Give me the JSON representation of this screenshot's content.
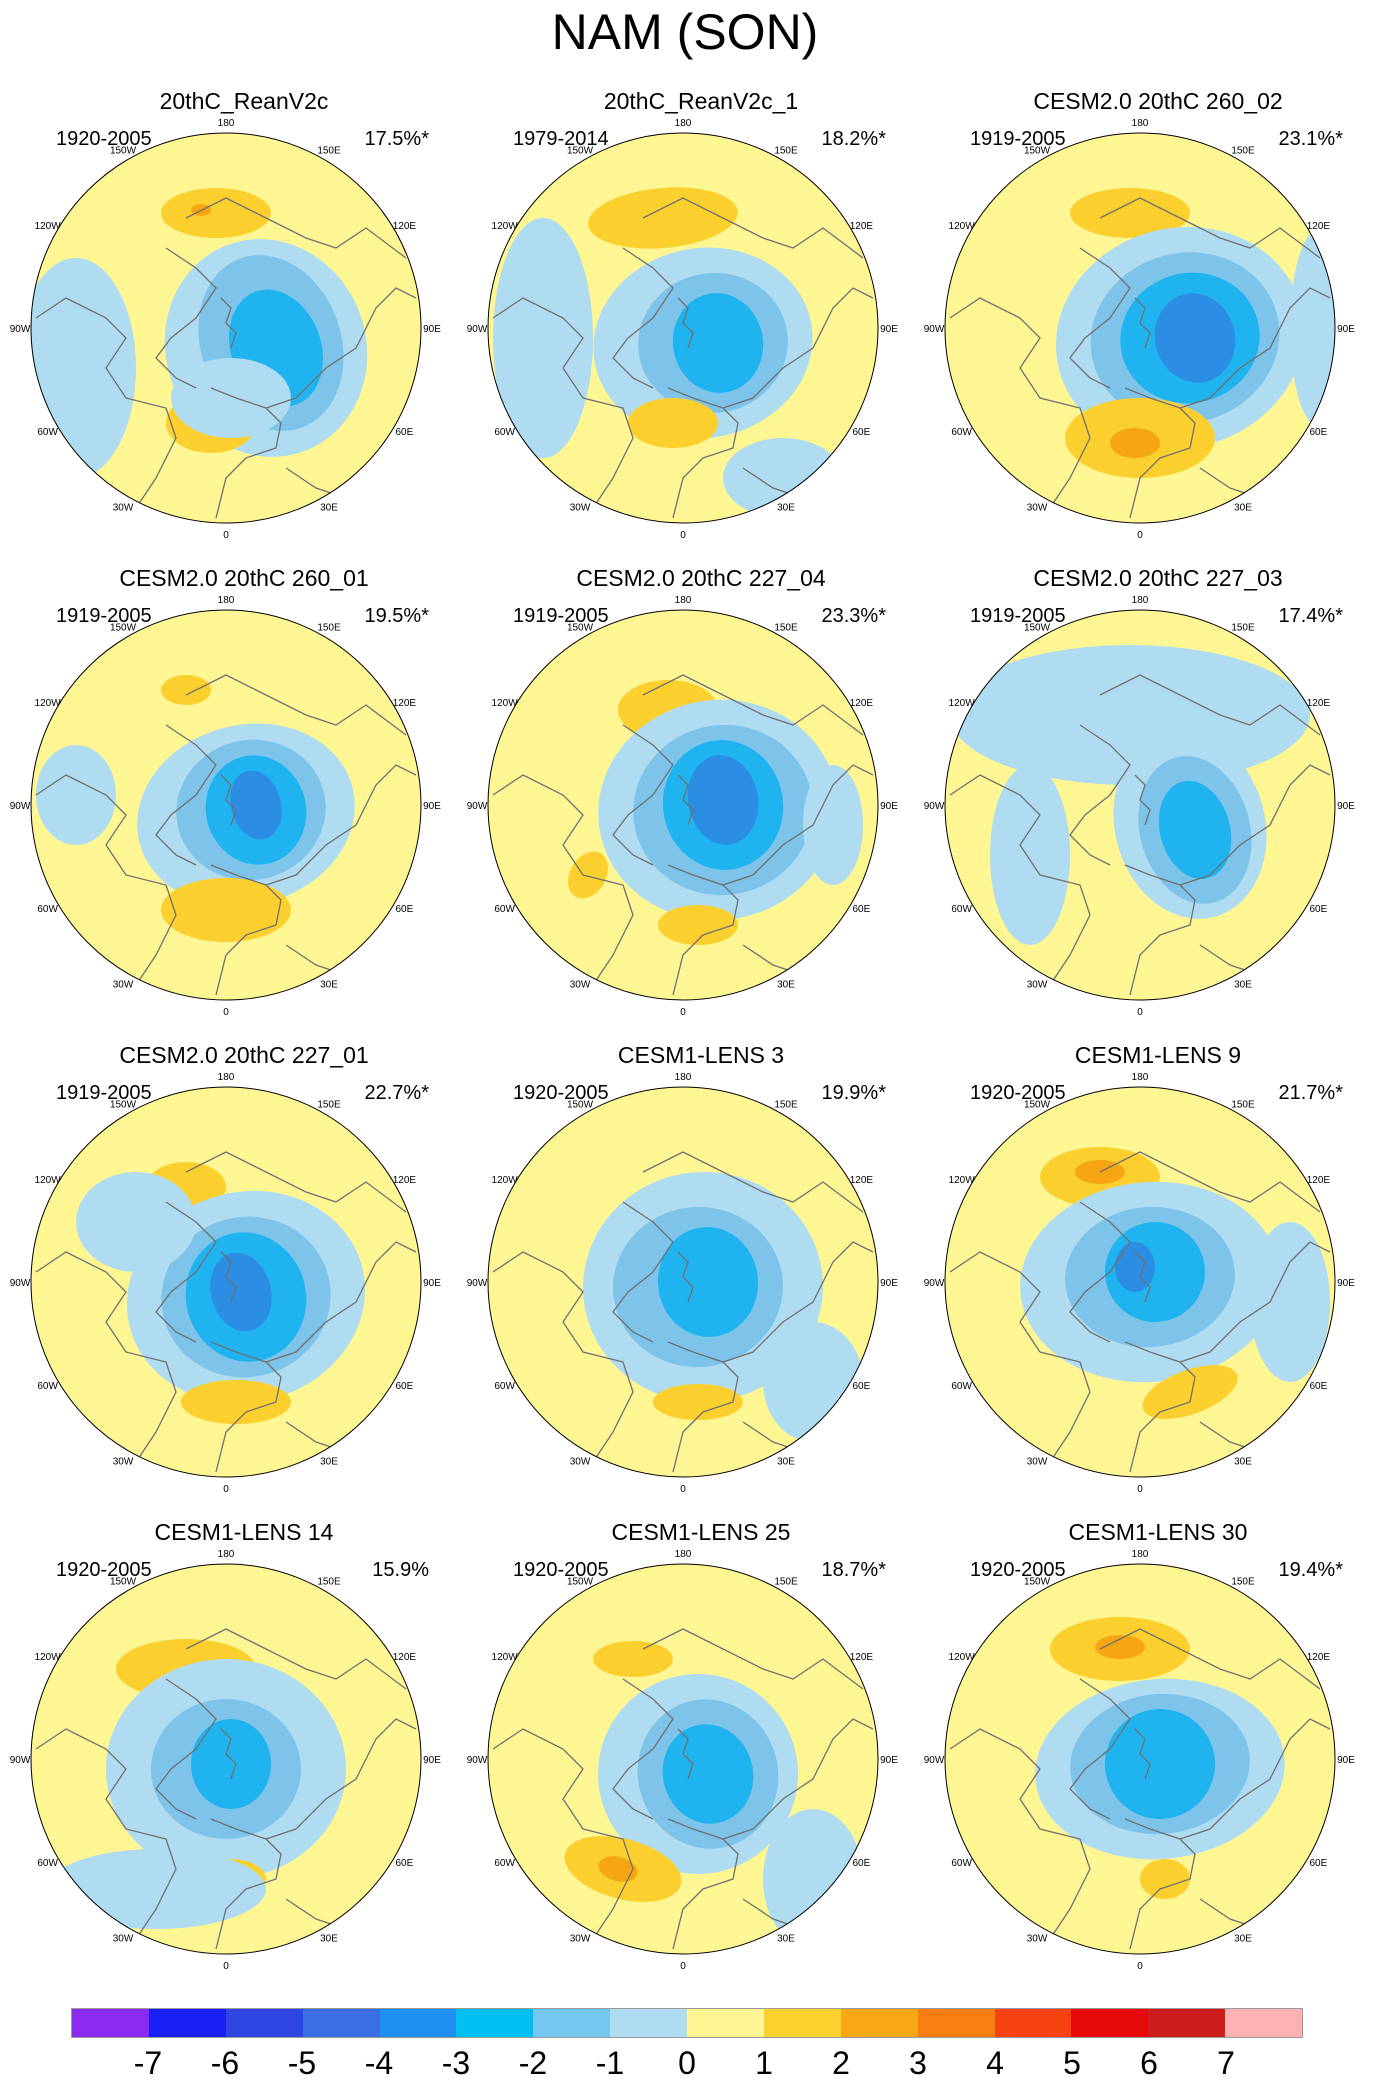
{
  "title": "NAM (SON)",
  "longitude_labels": [
    "180",
    "150E",
    "120E",
    "90E",
    "60E",
    "30E",
    "0",
    "30W",
    "60W",
    "90W",
    "120W",
    "150W"
  ],
  "colors": {
    "land_outline": "#707070",
    "neg1": "#b0dcf1",
    "neg2": "#7ec4ea",
    "neg3": "#1fb4f0",
    "neg4": "#2c8ee2",
    "neg5": "#3c5fdf",
    "pos1": "#fdf693",
    "pos2": "#fbd02e",
    "pos3": "#f6a613",
    "pos4": "#ee6b13"
  },
  "panels": [
    {
      "title": "20thC_ReanV2c",
      "years": "1920-2005",
      "variance": "17.5%*"
    },
    {
      "title": "20thC_ReanV2c_1",
      "years": "1979-2014",
      "variance": "18.2%*"
    },
    {
      "title": "CESM2.0 20thC 260_02",
      "years": "1919-2005",
      "variance": "23.1%*"
    },
    {
      "title": "CESM2.0 20thC 260_01",
      "years": "1919-2005",
      "variance": "19.5%*"
    },
    {
      "title": "CESM2.0 20thC 227_04",
      "years": "1919-2005",
      "variance": "23.3%*"
    },
    {
      "title": "CESM2.0 20thC 227_03",
      "years": "1919-2005",
      "variance": "17.4%*"
    },
    {
      "title": "CESM2.0 20thC 227_01",
      "years": "1919-2005",
      "variance": "22.7%*"
    },
    {
      "title": "CESM1-LENS 3",
      "years": "1920-2005",
      "variance": "19.9%*"
    },
    {
      "title": "CESM1-LENS 9",
      "years": "1920-2005",
      "variance": "21.7%*"
    },
    {
      "title": "CESM1-LENS 14",
      "years": "1920-2005",
      "variance": "15.9%"
    },
    {
      "title": "CESM1-LENS 25",
      "years": "1920-2005",
      "variance": "18.7%*"
    },
    {
      "title": "CESM1-LENS 30",
      "years": "1920-2005",
      "variance": "19.4%*"
    }
  ],
  "colorbar": {
    "colors": [
      "#8b2af0",
      "#1a1ff5",
      "#2f46e3",
      "#3b6ee2",
      "#1f90f0",
      "#00bff3",
      "#76c7ef",
      "#b0dcf1",
      "#fdf693",
      "#fbd12d",
      "#f8a815",
      "#f87e14",
      "#f6420f",
      "#e80a0a",
      "#cd1c1c",
      "#fdb2b2"
    ],
    "labels": [
      "-7",
      "-6",
      "-5",
      "-4",
      "-3",
      "-2",
      "-1",
      "0",
      "1",
      "2",
      "3",
      "4",
      "5",
      "6",
      "7"
    ]
  }
}
